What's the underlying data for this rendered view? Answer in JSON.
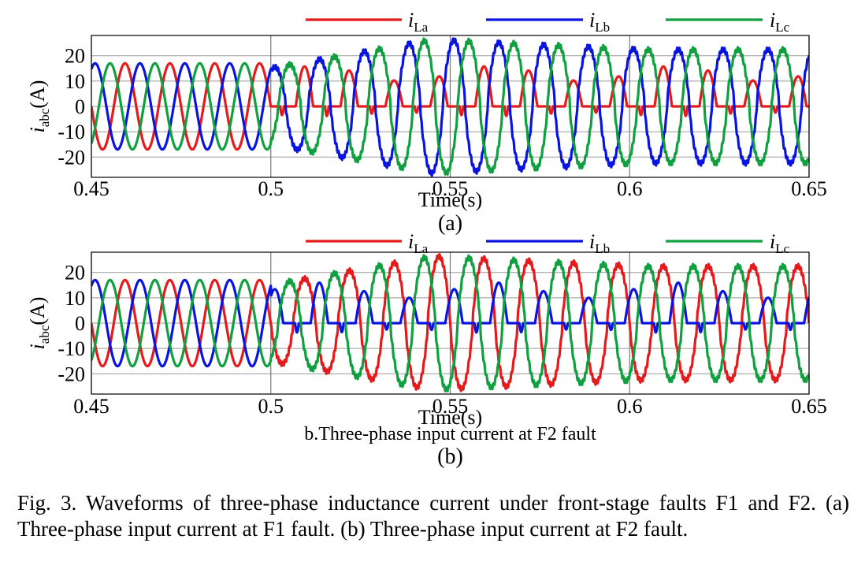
{
  "chart_data": [
    {
      "type": "line",
      "panel_label": "(a)",
      "subtitle": "",
      "xlabel": "Time(s)",
      "ylabel_main": "i",
      "ylabel_sub": "abc",
      "ylabel_unit": "(A)",
      "xlim": [
        0.45,
        0.65
      ],
      "ylim": [
        -28,
        28
      ],
      "x_ticks": [
        "0.45",
        "0.5",
        "0.55",
        "0.6",
        "0.65"
      ],
      "x_tick_values": [
        0.45,
        0.5,
        0.55,
        0.6,
        0.65
      ],
      "y_ticks": [
        "20",
        "10",
        "0",
        "-10",
        "-20"
      ],
      "y_tick_values": [
        20,
        10,
        0,
        -10,
        -20
      ],
      "grid": true,
      "legend_position": "top",
      "fault_time": 0.5,
      "frequency_hz": 80,
      "series": [
        {
          "name_main": "i",
          "name_sub": "La",
          "color": "#e41a1c",
          "pre_amplitude": 17,
          "post_amplitude": 13,
          "pre_phase_deg": 0,
          "post_behavior": "half-wave rectified, amplitude 10 growing to 17"
        },
        {
          "name_main": "i",
          "name_sub": "Lb",
          "color": "#0a14e0",
          "pre_amplitude": 17,
          "post_amplitude": 25,
          "pre_phase_deg": 120,
          "post_behavior": "amplitude grows to about 26 then settles near 22"
        },
        {
          "name_main": "i",
          "name_sub": "Lc",
          "color": "#10a040",
          "pre_amplitude": 17,
          "post_amplitude": 25,
          "pre_phase_deg": -120,
          "post_behavior": "amplitude grows to about 26 then settles near 22"
        }
      ]
    },
    {
      "type": "line",
      "panel_label": "(b)",
      "subtitle": "b.Three-phase input current at F2 fault",
      "xlabel": "Time(s)",
      "ylabel_main": "i",
      "ylabel_sub": "abc",
      "ylabel_unit": "(A)",
      "xlim": [
        0.45,
        0.65
      ],
      "ylim": [
        -28,
        28
      ],
      "x_ticks": [
        "0.45",
        "0.5",
        "0.55",
        "0.6",
        "0.65"
      ],
      "x_tick_values": [
        0.45,
        0.5,
        0.55,
        0.6,
        0.65
      ],
      "y_ticks": [
        "20",
        "10",
        "0",
        "-10",
        "-20"
      ],
      "y_tick_values": [
        20,
        10,
        0,
        -10,
        -20
      ],
      "grid": true,
      "legend_position": "top",
      "fault_time": 0.5,
      "frequency_hz": 80,
      "series": [
        {
          "name_main": "i",
          "name_sub": "La",
          "color": "#e41a1c",
          "pre_amplitude": 17,
          "post_amplitude": 25,
          "pre_phase_deg": 0,
          "post_behavior": "amplitude grows to about 26 then settles near 22"
        },
        {
          "name_main": "i",
          "name_sub": "Lb",
          "color": "#0a14e0",
          "pre_amplitude": 17,
          "post_amplitude": 13,
          "pre_phase_deg": 120,
          "post_behavior": "half-wave rectified, amplitude 12 to 16"
        },
        {
          "name_main": "i",
          "name_sub": "Lc",
          "color": "#10a040",
          "pre_amplitude": 17,
          "post_amplitude": 25,
          "pre_phase_deg": -120,
          "post_behavior": "amplitude grows to about 26 then settles near 22"
        }
      ]
    }
  ],
  "caption": "Fig. 3.   Waveforms of three-phase inductance current under front-stage faults F1 and F2. (a) Three-phase input current at F1 fault. (b) Three-phase input current at F2 fault."
}
